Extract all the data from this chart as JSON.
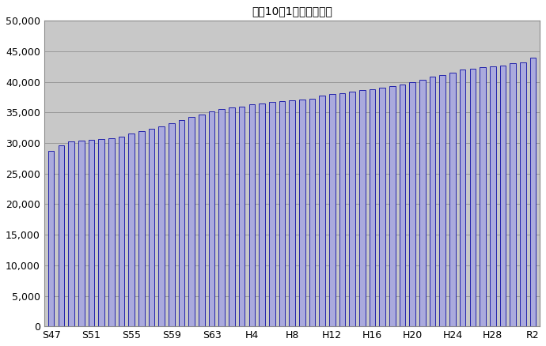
{
  "title": "各年10月1日現在の人口",
  "values": [
    28700,
    29600,
    30200,
    30400,
    30500,
    30600,
    30800,
    31100,
    31500,
    32000,
    32300,
    32700,
    33200,
    33800,
    34300,
    34700,
    35200,
    35600,
    35800,
    36000,
    36300,
    36500,
    36700,
    36800,
    37000,
    37100,
    37200,
    37800,
    38000,
    38200,
    38400,
    38600,
    38800,
    39000,
    39300,
    39600,
    39900,
    40300,
    40800,
    41100,
    41500,
    42000,
    42200,
    42400,
    42600,
    42700,
    43000,
    43200,
    44000
  ],
  "xtick_labels": [
    "S47",
    "S51",
    "S55",
    "S59",
    "S63",
    "H4",
    "H8",
    "H12",
    "H16",
    "H20",
    "H24",
    "H28",
    "R2"
  ],
  "xtick_positions": [
    0,
    4,
    8,
    12,
    16,
    20,
    24,
    28,
    32,
    36,
    40,
    44,
    48
  ],
  "ylim": [
    0,
    50000
  ],
  "yticks": [
    0,
    5000,
    10000,
    15000,
    20000,
    25000,
    30000,
    35000,
    40000,
    45000,
    50000
  ],
  "bar_color": "#aaaadd",
  "bar_edge_color": "#2222aa",
  "background_color": "#c8c8c8",
  "grid_color": "#999999",
  "title_fontsize": 10,
  "bar_width": 0.6,
  "figwidth": 6.9,
  "figheight": 4.38,
  "dpi": 100
}
